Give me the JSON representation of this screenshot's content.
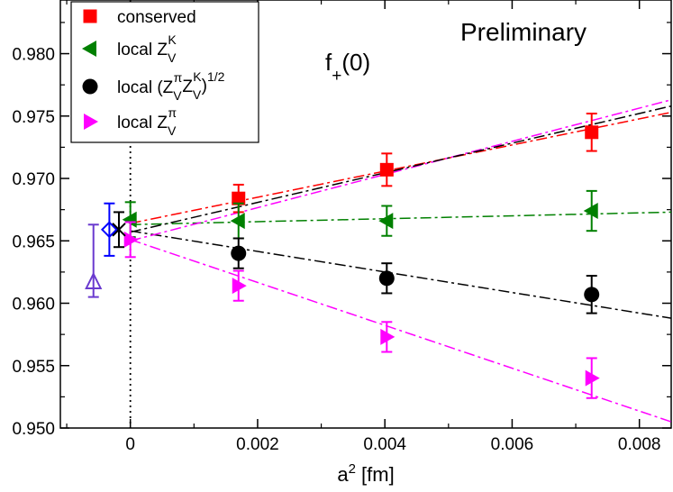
{
  "chart_data": {
    "type": "scatter",
    "title": "",
    "xlabel": "a",
    "xlabel_sup": "2",
    "xlabel_unit": " [fm]",
    "ylabel": "",
    "xlim": [
      -0.0011,
      0.0085
    ],
    "ylim": [
      0.95,
      0.9843
    ],
    "grid": false,
    "x_ticks": [
      0,
      0.002,
      0.004,
      0.006,
      0.008
    ],
    "x_tick_labels": [
      "0",
      "0.002",
      "0.004",
      "0.006",
      "0.008"
    ],
    "y_ticks": [
      0.95,
      0.955,
      0.96,
      0.965,
      0.97,
      0.975,
      0.98
    ],
    "y_tick_labels": [
      "0.950",
      "0.955",
      "0.960",
      "0.965",
      "0.970",
      "0.975",
      "0.980"
    ],
    "annotations": {
      "preliminary": "Preliminary",
      "f_main": "f",
      "f_sub": "+",
      "f_arg": "(0)"
    },
    "series": [
      {
        "name": "conserved",
        "legend_parts": [
          [
            "conserved",
            "n"
          ]
        ],
        "color": "#ff0000",
        "marker": "square",
        "points": [
          {
            "x": 0.0017,
            "y": 0.9684,
            "err": 0.0011
          },
          {
            "x": 0.00403,
            "y": 0.9707,
            "err": 0.0013
          },
          {
            "x": 0.00725,
            "y": 0.9737,
            "err": 0.0015
          }
        ],
        "fit": {
          "x0": 0.0,
          "y0": 0.9664,
          "x1": 0.0085,
          "y1": 0.9753,
          "dash": "12,4,3,4"
        }
      },
      {
        "name": "local Z_V^K",
        "legend_parts": [
          [
            "local Z",
            "n"
          ],
          [
            "V",
            "sub"
          ],
          [
            "K",
            "sup"
          ]
        ],
        "color": "#008000",
        "marker": "triangle-left",
        "points": [
          {
            "x": 0.0,
            "y": 0.9667,
            "err": 0.0014
          },
          {
            "x": 0.0017,
            "y": 0.9666,
            "err": 0.0014
          },
          {
            "x": 0.00403,
            "y": 0.9666,
            "err": 0.0012
          },
          {
            "x": 0.00725,
            "y": 0.9674,
            "err": 0.0016
          }
        ],
        "fit": {
          "x0": 0.0,
          "y0": 0.9663,
          "x1": 0.0085,
          "y1": 0.9673,
          "dash": "12,4,3,4"
        }
      },
      {
        "name": "local (Z_V^pi Z_V^K)^1/2",
        "legend_parts": [
          [
            "local (Z",
            "n"
          ],
          [
            "V",
            "sub"
          ],
          [
            "π",
            "sup"
          ],
          [
            "Z",
            "n"
          ],
          [
            "V",
            "sub"
          ],
          [
            "K",
            "sup"
          ],
          [
            ")",
            "n"
          ],
          [
            "1/2",
            "sup"
          ]
        ],
        "color": "#000000",
        "marker": "circle",
        "points": [
          {
            "x": 0.0017,
            "y": 0.964,
            "err": 0.0012
          },
          {
            "x": 0.00403,
            "y": 0.962,
            "err": 0.0012
          },
          {
            "x": 0.00725,
            "y": 0.9607,
            "err": 0.0015
          }
        ],
        "fit": {
          "x0": 0.0,
          "y0": 0.9658,
          "x1": 0.0085,
          "y1": 0.9588,
          "dash": "12,4,3,4"
        }
      },
      {
        "name": "local Z_V^pi",
        "legend_parts": [
          [
            "local Z",
            "n"
          ],
          [
            "V",
            "sub"
          ],
          [
            "π",
            "sup"
          ]
        ],
        "color": "#ff00ff",
        "marker": "triangle-right",
        "points": [
          {
            "x": 0.0,
            "y": 0.9651,
            "err": 0.0014
          },
          {
            "x": 0.0017,
            "y": 0.9614,
            "err": 0.0012
          },
          {
            "x": 0.00403,
            "y": 0.9573,
            "err": 0.0012
          },
          {
            "x": 0.00725,
            "y": 0.954,
            "err": 0.0016
          }
        ],
        "fit": {
          "x0": 0.0,
          "y0": 0.9651,
          "x1": 0.0085,
          "y1": 0.9505,
          "dash": "12,4,3,4"
        },
        "fit2": {
          "x0": 0.0,
          "y0": 0.965,
          "x1": 0.0085,
          "y1": 0.9763,
          "dash": "12,4,3,4"
        }
      }
    ],
    "extra_fits": [
      {
        "color": "#000000",
        "x0": 0.0,
        "y0": 0.9657,
        "x1": 0.0085,
        "y1": 0.9758,
        "dash": "12,4,3,4"
      }
    ],
    "extrapolated_points": [
      {
        "name": "extrapolation-triangle",
        "x": -0.00058,
        "y": 0.9617,
        "err": 0.0012,
        "err_up": 0.0046,
        "color": "#6a3acf",
        "marker": "triangle-up-open"
      },
      {
        "name": "extrapolation-diamond",
        "x": -0.00033,
        "y": 0.9659,
        "err": 0.0021,
        "color": "#0000ff",
        "marker": "diamond-open"
      },
      {
        "name": "extrapolation-cross",
        "x": -0.00018,
        "y": 0.9659,
        "err": 0.0014,
        "color": "#000000",
        "marker": "cross"
      }
    ],
    "reference_line": {
      "x": 0.0,
      "style": "dotted"
    }
  }
}
